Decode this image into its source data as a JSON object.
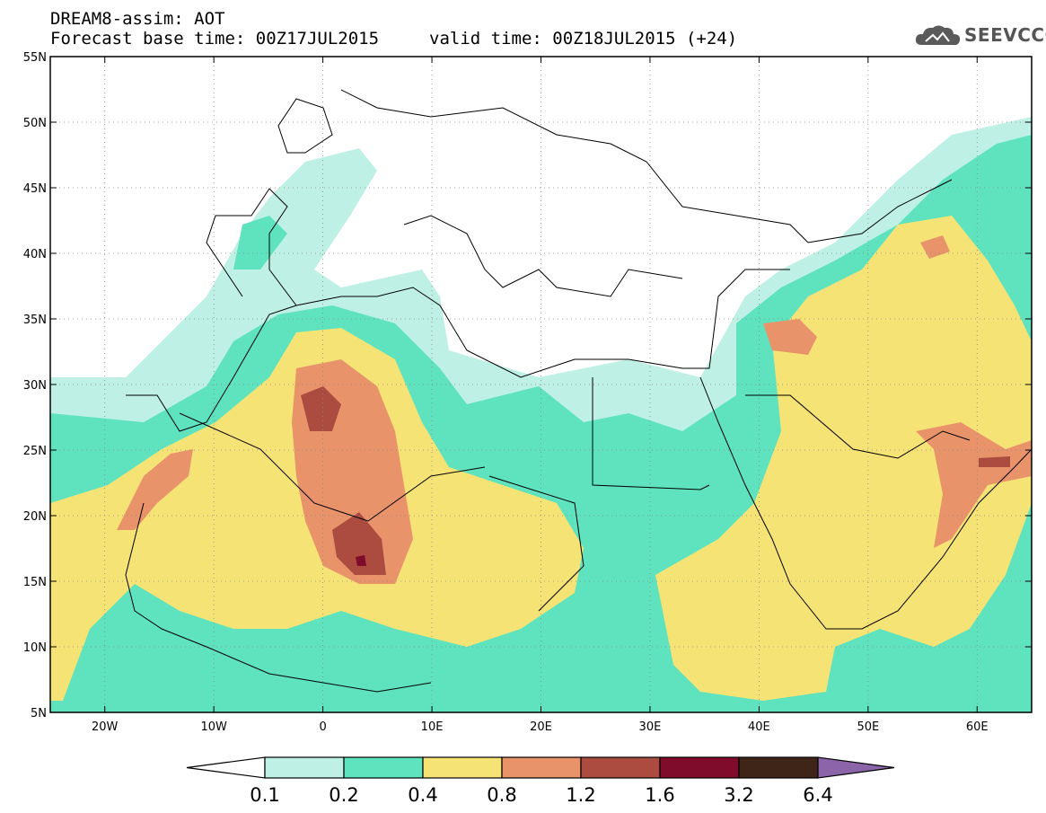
{
  "header": {
    "model_line": "DREAM8-assim: AOT",
    "base_time_line": "Forecast base time: 00Z17JUL2015",
    "valid_time_line": "valid time: 00Z18JUL2015 (+24)",
    "logo_text": "SEEVCCC"
  },
  "axes": {
    "lat_labels": [
      "55N",
      "50N",
      "45N",
      "40N",
      "35N",
      "30N",
      "25N",
      "20N",
      "15N",
      "10N",
      "5N"
    ],
    "lon_labels": [
      "20W",
      "10W",
      "0",
      "10E",
      "20E",
      "30E",
      "40E",
      "50E",
      "60E"
    ]
  },
  "colorbar": {
    "levels": [
      "0.1",
      "0.2",
      "0.4",
      "0.8",
      "1.2",
      "1.6",
      "3.2",
      "6.4"
    ],
    "colors": [
      "#ffffff",
      "#bff0e6",
      "#5ee3be",
      "#f5e376",
      "#e8936a",
      "#ac4c40",
      "#7e0c2a",
      "#3e2518",
      "#8c64aa"
    ]
  },
  "map": {
    "lon_range": [
      -25,
      65
    ],
    "lat_range": [
      5,
      55
    ],
    "variable": "aerosol optical thickness",
    "background_color": "#ffffff"
  }
}
